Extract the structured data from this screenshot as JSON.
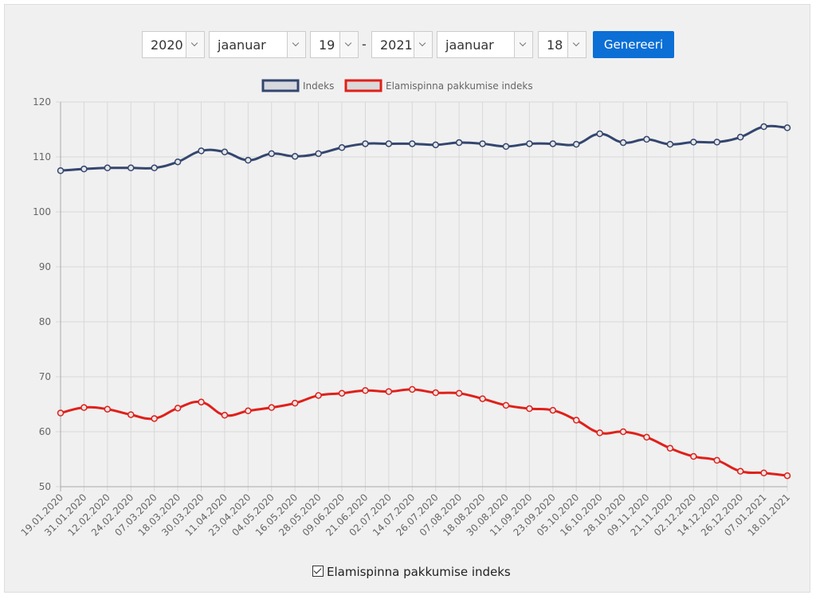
{
  "controls": {
    "from_year": "2020",
    "from_month": "jaanuar",
    "from_day": "19",
    "separator": "-",
    "to_year": "2021",
    "to_month": "jaanuar",
    "to_day": "18",
    "button": "Genereeri",
    "checkbox_label": "Elamispinna pakkumise indeks"
  },
  "chart_data": {
    "type": "line",
    "categories": [
      "19.01.2020",
      "31.01.2020",
      "12.02.2020",
      "24.02.2020",
      "07.03.2020",
      "18.03.2020",
      "30.03.2020",
      "11.04.2020",
      "23.04.2020",
      "04.05.2020",
      "16.05.2020",
      "28.05.2020",
      "09.06.2020",
      "21.06.2020",
      "02.07.2020",
      "14.07.2020",
      "26.07.2020",
      "07.08.2020",
      "18.08.2020",
      "30.08.2020",
      "11.09.2020",
      "23.09.2020",
      "05.10.2020",
      "16.10.2020",
      "28.10.2020",
      "09.11.2020",
      "21.11.2020",
      "02.12.2020",
      "14.12.2020",
      "26.12.2020",
      "07.01.2021",
      "18.01.2021"
    ],
    "series": [
      {
        "name": "Indeks",
        "color": "#34466f",
        "values": [
          107.5,
          107.8,
          108,
          108,
          108,
          109.1,
          111.1,
          110.9,
          109.4,
          110.6,
          110.1,
          110.6,
          111.7,
          112.4,
          112.4,
          112.4,
          112.2,
          112.6,
          112.4,
          111.9,
          112.4,
          112.4,
          112.3,
          114.2,
          112.6,
          113.2,
          112.3,
          112.7,
          112.7,
          113.6,
          115.5,
          115.3
        ]
      },
      {
        "name": "Elamispinna pakkumise indeks",
        "color": "#e0201a",
        "values": [
          63.4,
          64.4,
          64.1,
          63.1,
          62.4,
          64.3,
          65.4,
          63.0,
          63.8,
          64.4,
          65.2,
          66.6,
          67.0,
          67.5,
          67.3,
          67.7,
          67.1,
          67.0,
          66.0,
          64.8,
          64.2,
          63.9,
          62.1,
          59.8,
          60.0,
          59.0,
          57.0,
          55.5,
          54.8,
          52.8,
          52.5,
          52.0
        ]
      }
    ],
    "ylim": [
      50,
      120
    ],
    "yticks": [
      50,
      60,
      70,
      80,
      90,
      100,
      110,
      120
    ],
    "grid": true,
    "legend": "top"
  }
}
